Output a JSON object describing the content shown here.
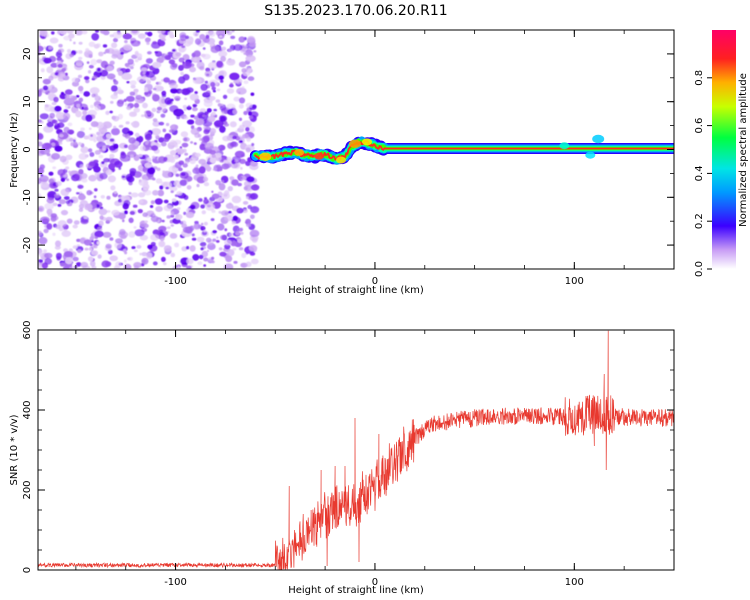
{
  "figure": {
    "title": "S135.2023.170.06.20.R11"
  },
  "chart_data": [
    {
      "type": "heatmap",
      "xlabel": "Height of straight line (km)",
      "ylabel": "Frequency (Hz)",
      "xlim": [
        -169,
        150
      ],
      "ylim": [
        -25,
        25
      ],
      "x_ticks": [
        {
          "value": -100,
          "label": "-100"
        },
        {
          "value": 0,
          "label": "0"
        },
        {
          "value": 100,
          "label": "100"
        }
      ],
      "y_ticks": [
        {
          "value": -20,
          "label": "-20"
        },
        {
          "value": -10,
          "label": "-10"
        },
        {
          "value": 0,
          "label": "0"
        },
        {
          "value": 10,
          "label": "10"
        },
        {
          "value": 20,
          "label": "20"
        }
      ],
      "noise_region": {
        "x_start": -169,
        "x_end": -60
      },
      "signal_track": {
        "x": [
          -60,
          -55,
          -50,
          -45,
          -40,
          -35,
          -30,
          -25,
          -20,
          -15,
          -12,
          -8,
          -4,
          0,
          5,
          150
        ],
        "freq": [
          -1.5,
          -1.5,
          -1.5,
          -0.8,
          -0.6,
          -1.2,
          -1.4,
          -1.0,
          -2.0,
          -1.5,
          0.5,
          1.6,
          1.4,
          0.8,
          0.2,
          0.2
        ]
      },
      "colorbar": {
        "label": "Normalized spectral amplitude",
        "range": [
          0,
          1
        ],
        "ticks": [
          {
            "value": 0.0,
            "label": "0.0"
          },
          {
            "value": 0.2,
            "label": "0.2"
          },
          {
            "value": 0.4,
            "label": "0.4"
          },
          {
            "value": 0.6,
            "label": "0.6"
          },
          {
            "value": 0.8,
            "label": "0.8"
          }
        ]
      }
    },
    {
      "type": "line",
      "xlabel": "Height of straight line (km)",
      "ylabel": "SNR (10 * v/v)",
      "xlim": [
        -169,
        150
      ],
      "ylim": [
        0,
        600
      ],
      "color": "#e8392f",
      "x_ticks": [
        {
          "value": -100,
          "label": "-100"
        },
        {
          "value": 0,
          "label": "0"
        },
        {
          "value": 100,
          "label": "100"
        }
      ],
      "y_ticks": [
        {
          "value": 0,
          "label": "0"
        },
        {
          "value": 200,
          "label": "200"
        },
        {
          "value": 400,
          "label": "400"
        },
        {
          "value": 600,
          "label": "600"
        }
      ],
      "trend": {
        "x": [
          -169,
          -50,
          -45,
          -40,
          -35,
          -30,
          -25,
          -20,
          -15,
          -10,
          -5,
          0,
          5,
          10,
          15,
          20,
          25,
          30,
          40,
          50,
          60,
          80,
          100,
          115,
          120,
          130,
          150
        ],
        "y": [
          12,
          12,
          30,
          60,
          90,
          110,
          130,
          150,
          160,
          170,
          185,
          210,
          240,
          270,
          300,
          330,
          350,
          365,
          375,
          380,
          385,
          385,
          385,
          390,
          385,
          380,
          380
        ]
      },
      "spikes": [
        {
          "x": -43,
          "y": 210
        },
        {
          "x": -32,
          "y": 150
        },
        {
          "x": -27,
          "y": 250
        },
        {
          "x": -24,
          "y": 10
        },
        {
          "x": -20,
          "y": 260
        },
        {
          "x": -15,
          "y": 260
        },
        {
          "x": -10,
          "y": 380
        },
        {
          "x": -8,
          "y": 20
        },
        {
          "x": 2,
          "y": 340
        },
        {
          "x": 110,
          "y": 310
        },
        {
          "x": 115,
          "y": 490
        },
        {
          "x": 116,
          "y": 250
        },
        {
          "x": 117,
          "y": 598
        }
      ]
    }
  ]
}
